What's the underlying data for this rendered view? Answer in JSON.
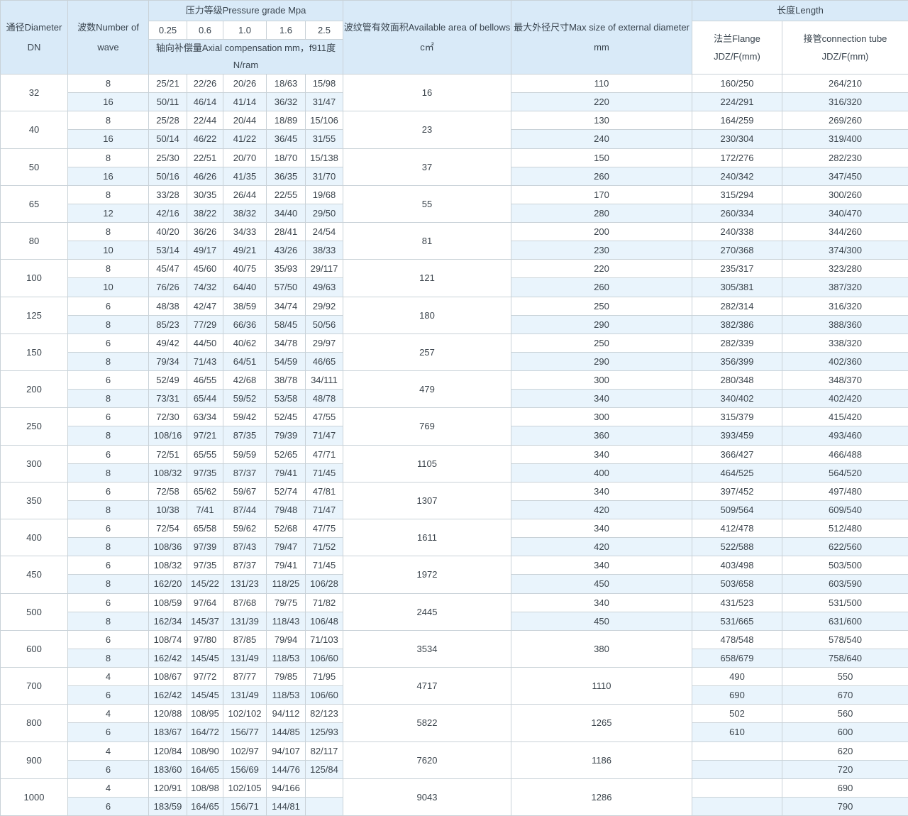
{
  "colors": {
    "header_bg": "#d9eaf8",
    "alt_row_bg": "#e9f4fc",
    "border": "#c9d2d8",
    "text": "#3f4951"
  },
  "table": {
    "header": {
      "diameter": "通径Diameter DN",
      "waves": "波数Number of wave",
      "pressure_title": "压力等级Pressure grade Mpa",
      "grades": [
        "0.25",
        "0.6",
        "1.0",
        "1.6",
        "2.5"
      ],
      "compensation_line1": "轴向补偿量Axial compensation mm，f911度",
      "compensation_line2": "N/ram",
      "area": "波纹管有效面积Available area of bellows c㎡",
      "max_diameter": "最大外径尺寸Max size of external diameter mm",
      "length_title": "长度Length",
      "flange_line1": "法兰Flange",
      "flange_line2": "JDZ/F(mm)",
      "tube_line1": "接管connection tube",
      "tube_line2": "JDZ/F(mm)"
    },
    "groups": [
      {
        "dn": "32",
        "area": "16",
        "max_span": null,
        "rows": [
          {
            "waves": "8",
            "pressure": [
              "25/21",
              "22/26",
              "20/26",
              "18/63",
              "15/98"
            ],
            "max": "110",
            "flange": "160/250",
            "tube": "264/210"
          },
          {
            "waves": "16",
            "pressure": [
              "50/11",
              "46/14",
              "41/14",
              "36/32",
              "31/47"
            ],
            "max": "220",
            "flange": "224/291",
            "tube": "316/320"
          }
        ]
      },
      {
        "dn": "40",
        "area": "23",
        "max_span": null,
        "rows": [
          {
            "waves": "8",
            "pressure": [
              "25/28",
              "22/44",
              "20/44",
              "18/89",
              "15/106"
            ],
            "max": "130",
            "flange": "164/259",
            "tube": "269/260"
          },
          {
            "waves": "16",
            "pressure": [
              "50/14",
              "46/22",
              "41/22",
              "36/45",
              "31/55"
            ],
            "max": "240",
            "flange": "230/304",
            "tube": "319/400"
          }
        ]
      },
      {
        "dn": "50",
        "area": "37",
        "max_span": null,
        "rows": [
          {
            "waves": "8",
            "pressure": [
              "25/30",
              "22/51",
              "20/70",
              "18/70",
              "15/138"
            ],
            "max": "150",
            "flange": "172/276",
            "tube": "282/230"
          },
          {
            "waves": "16",
            "pressure": [
              "50/16",
              "46/26",
              "41/35",
              "36/35",
              "31/70"
            ],
            "max": "260",
            "flange": "240/342",
            "tube": "347/450"
          }
        ]
      },
      {
        "dn": "65",
        "area": "55",
        "max_span": null,
        "rows": [
          {
            "waves": "8",
            "pressure": [
              "33/28",
              "30/35",
              "26/44",
              "22/55",
              "19/68"
            ],
            "max": "170",
            "flange": "315/294",
            "tube": "300/260"
          },
          {
            "waves": "12",
            "pressure": [
              "42/16",
              "38/22",
              "38/32",
              "34/40",
              "29/50"
            ],
            "max": "280",
            "flange": "260/334",
            "tube": "340/470"
          }
        ]
      },
      {
        "dn": "80",
        "area": "81",
        "max_span": null,
        "rows": [
          {
            "waves": "8",
            "pressure": [
              "40/20",
              "36/26",
              "34/33",
              "28/41",
              "24/54"
            ],
            "max": "200",
            "flange": "240/338",
            "tube": "344/260"
          },
          {
            "waves": "10",
            "pressure": [
              "53/14",
              "49/17",
              "49/21",
              "43/26",
              "38/33"
            ],
            "max": "230",
            "flange": "270/368",
            "tube": "374/300"
          }
        ]
      },
      {
        "dn": "100",
        "area": "121",
        "max_span": null,
        "rows": [
          {
            "waves": "8",
            "pressure": [
              "45/47",
              "45/60",
              "40/75",
              "35/93",
              "29/117"
            ],
            "max": "220",
            "flange": "235/317",
            "tube": "323/280"
          },
          {
            "waves": "10",
            "pressure": [
              "76/26",
              "74/32",
              "64/40",
              "57/50",
              "49/63"
            ],
            "max": "260",
            "flange": "305/381",
            "tube": "387/320"
          }
        ]
      },
      {
        "dn": "125",
        "area": "180",
        "max_span": null,
        "rows": [
          {
            "waves": "6",
            "pressure": [
              "48/38",
              "42/47",
              "38/59",
              "34/74",
              "29/92"
            ],
            "max": "250",
            "flange": "282/314",
            "tube": "316/320"
          },
          {
            "waves": "8",
            "pressure": [
              "85/23",
              "77/29",
              "66/36",
              "58/45",
              "50/56"
            ],
            "max": "290",
            "flange": "382/386",
            "tube": "388/360"
          }
        ]
      },
      {
        "dn": "150",
        "area": "257",
        "max_span": null,
        "rows": [
          {
            "waves": "6",
            "pressure": [
              "49/42",
              "44/50",
              "40/62",
              "34/78",
              "29/97"
            ],
            "max": "250",
            "flange": "282/339",
            "tube": "338/320"
          },
          {
            "waves": "8",
            "pressure": [
              "79/34",
              "71/43",
              "64/51",
              "54/59",
              "46/65"
            ],
            "max": "290",
            "flange": "356/399",
            "tube": "402/360"
          }
        ]
      },
      {
        "dn": "200",
        "area": "479",
        "max_span": null,
        "rows": [
          {
            "waves": "6",
            "pressure": [
              "52/49",
              "46/55",
              "42/68",
              "38/78",
              "34/111"
            ],
            "max": "300",
            "flange": "280/348",
            "tube": "348/370"
          },
          {
            "waves": "8",
            "pressure": [
              "73/31",
              "65/44",
              "59/52",
              "53/58",
              "48/78"
            ],
            "max": "340",
            "flange": "340/402",
            "tube": "402/420"
          }
        ]
      },
      {
        "dn": "250",
        "area": "769",
        "max_span": null,
        "rows": [
          {
            "waves": "6",
            "pressure": [
              "72/30",
              "63/34",
              "59/42",
              "52/45",
              "47/55"
            ],
            "max": "300",
            "flange": "315/379",
            "tube": "415/420"
          },
          {
            "waves": "8",
            "pressure": [
              "108/16",
              "97/21",
              "87/35",
              "79/39",
              "71/47"
            ],
            "max": "360",
            "flange": "393/459",
            "tube": "493/460"
          }
        ]
      },
      {
        "dn": "300",
        "area": "1105",
        "max_span": null,
        "rows": [
          {
            "waves": "6",
            "pressure": [
              "72/51",
              "65/55",
              "59/59",
              "52/65",
              "47/71"
            ],
            "max": "340",
            "flange": "366/427",
            "tube": "466/488"
          },
          {
            "waves": "8",
            "pressure": [
              "108/32",
              "97/35",
              "87/37",
              "79/41",
              "71/45"
            ],
            "max": "400",
            "flange": "464/525",
            "tube": "564/520"
          }
        ]
      },
      {
        "dn": "350",
        "area": "1307",
        "max_span": null,
        "rows": [
          {
            "waves": "6",
            "pressure": [
              "72/58",
              "65/62",
              "59/67",
              "52/74",
              "47/81"
            ],
            "max": "340",
            "flange": "397/452",
            "tube": "497/480"
          },
          {
            "waves": "8",
            "pressure": [
              "10/38",
              "7/41",
              "87/44",
              "79/48",
              "71/47"
            ],
            "max": "420",
            "flange": "509/564",
            "tube": "609/540"
          }
        ]
      },
      {
        "dn": "400",
        "area": "1611",
        "max_span": null,
        "rows": [
          {
            "waves": "6",
            "pressure": [
              "72/54",
              "65/58",
              "59/62",
              "52/68",
              "47/75"
            ],
            "max": "340",
            "flange": "412/478",
            "tube": "512/480"
          },
          {
            "waves": "8",
            "pressure": [
              "108/36",
              "97/39",
              "87/43",
              "79/47",
              "71/52"
            ],
            "max": "420",
            "flange": "522/588",
            "tube": "622/560"
          }
        ]
      },
      {
        "dn": "450",
        "area": "1972",
        "max_span": null,
        "rows": [
          {
            "waves": "6",
            "pressure": [
              "108/32",
              "97/35",
              "87/37",
              "79/41",
              "71/45"
            ],
            "max": "340",
            "flange": "403/498",
            "tube": "503/500"
          },
          {
            "waves": "8",
            "pressure": [
              "162/20",
              "145/22",
              "131/23",
              "118/25",
              "106/28"
            ],
            "max": "450",
            "flange": "503/658",
            "tube": "603/590"
          }
        ]
      },
      {
        "dn": "500",
        "area": "2445",
        "max_span": null,
        "rows": [
          {
            "waves": "6",
            "pressure": [
              "108/59",
              "97/64",
              "87/68",
              "79/75",
              "71/82"
            ],
            "max": "340",
            "flange": "431/523",
            "tube": "531/500"
          },
          {
            "waves": "8",
            "pressure": [
              "162/34",
              "145/37",
              "131/39",
              "118/43",
              "106/48"
            ],
            "max": "450",
            "flange": "531/665",
            "tube": "631/600"
          }
        ]
      },
      {
        "dn": "600",
        "area": "3534",
        "max_span": "380",
        "rows": [
          {
            "waves": "6",
            "pressure": [
              "108/74",
              "97/80",
              "87/85",
              "79/94",
              "71/103"
            ],
            "flange": "478/548",
            "tube": "578/540"
          },
          {
            "waves": "8",
            "pressure": [
              "162/42",
              "145/45",
              "131/49",
              "118/53",
              "106/60"
            ],
            "flange": "658/679",
            "tube": "758/640"
          }
        ]
      },
      {
        "dn": "700",
        "area": "4717",
        "max_span": "1110",
        "rows": [
          {
            "waves": "4",
            "pressure": [
              "108/67",
              "97/72",
              "87/77",
              "79/85",
              "71/95"
            ],
            "flange": "490",
            "tube": "550"
          },
          {
            "waves": "6",
            "pressure": [
              "162/42",
              "145/45",
              "131/49",
              "118/53",
              "106/60"
            ],
            "flange": "690",
            "tube": "670"
          }
        ]
      },
      {
        "dn": "800",
        "area": "5822",
        "max_span": "1265",
        "rows": [
          {
            "waves": "4",
            "pressure": [
              "120/88",
              "108/95",
              "102/102",
              "94/112",
              "82/123"
            ],
            "flange": "502",
            "tube": "560"
          },
          {
            "waves": "6",
            "pressure": [
              "183/67",
              "164/72",
              "156/77",
              "144/85",
              "125/93"
            ],
            "flange": "610",
            "tube": "600"
          }
        ]
      },
      {
        "dn": "900",
        "area": "7620",
        "max_span": "1186",
        "rows": [
          {
            "waves": "4",
            "pressure": [
              "120/84",
              "108/90",
              "102/97",
              "94/107",
              "82/117"
            ],
            "flange": "",
            "tube": "620"
          },
          {
            "waves": "6",
            "pressure": [
              "183/60",
              "164/65",
              "156/69",
              "144/76",
              "125/84"
            ],
            "flange": "",
            "tube": "720"
          }
        ]
      },
      {
        "dn": "1000",
        "area": "9043",
        "max_span": "1286",
        "rows": [
          {
            "waves": "4",
            "pressure": [
              "120/91",
              "108/98",
              "102/105",
              "94/166",
              ""
            ],
            "flange": "",
            "tube": "690"
          },
          {
            "waves": "6",
            "pressure": [
              "183/59",
              "164/65",
              "156/71",
              "144/81",
              ""
            ],
            "flange": "",
            "tube": "790"
          }
        ]
      }
    ]
  }
}
